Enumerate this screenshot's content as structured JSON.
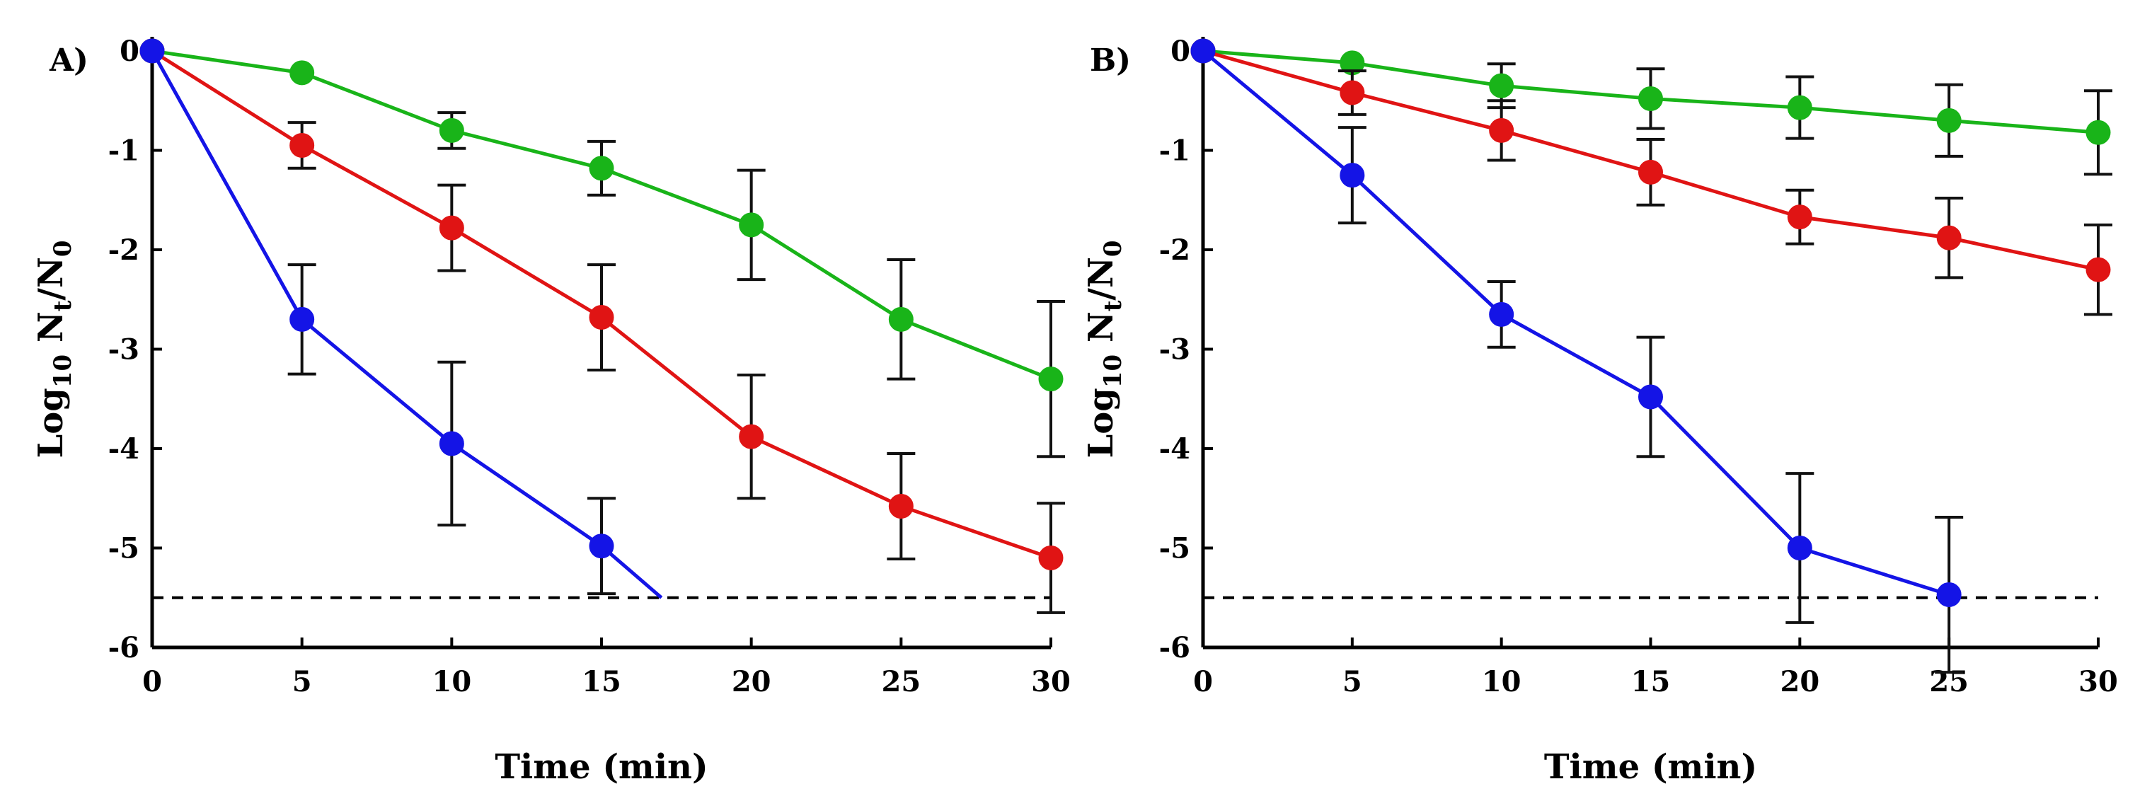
{
  "chart_data": [
    {
      "type": "line",
      "panel_label": "A)",
      "xlabel": "Time (min)",
      "ylabel": {
        "base": "Log",
        "sub1": "10",
        "mid": " N",
        "sub2": "t",
        "slash": "/N",
        "sub3": "0"
      },
      "xlim": [
        0,
        30
      ],
      "ylim": [
        -6,
        0
      ],
      "xticks": [
        "0",
        "5",
        "10",
        "15",
        "20",
        "25",
        "30"
      ],
      "yticks": [
        "0",
        "-1",
        "-2",
        "-3",
        "-4",
        "-5",
        "-6"
      ],
      "detection_limit": -5.5,
      "legend": "none",
      "series": [
        {
          "name": "green",
          "color": "#19b419",
          "points": [
            {
              "x": 0,
              "y": 0,
              "err": 0
            },
            {
              "x": 5,
              "y": -0.22,
              "err": 0
            },
            {
              "x": 10,
              "y": -0.8,
              "err": 0.18
            },
            {
              "x": 15,
              "y": -1.18,
              "err": 0.27
            },
            {
              "x": 20,
              "y": -1.75,
              "err": 0.55
            },
            {
              "x": 25,
              "y": -2.7,
              "err": 0.6
            },
            {
              "x": 30,
              "y": -3.3,
              "err": 0.78
            }
          ]
        },
        {
          "name": "red",
          "color": "#e01414",
          "points": [
            {
              "x": 0,
              "y": 0,
              "err": 0
            },
            {
              "x": 5,
              "y": -0.95,
              "err": 0.23
            },
            {
              "x": 10,
              "y": -1.78,
              "err": 0.43
            },
            {
              "x": 15,
              "y": -2.68,
              "err": 0.53
            },
            {
              "x": 20,
              "y": -3.88,
              "err": 0.62
            },
            {
              "x": 25,
              "y": -4.58,
              "err": 0.53
            },
            {
              "x": 30,
              "y": -5.1,
              "err": 0.55
            }
          ]
        },
        {
          "name": "blue",
          "color": "#1414e6",
          "line_end": {
            "x": 17,
            "y": -5.5
          },
          "points": [
            {
              "x": 0,
              "y": 0,
              "err": 0
            },
            {
              "x": 5,
              "y": -2.7,
              "err": 0.55
            },
            {
              "x": 10,
              "y": -3.95,
              "err": 0.82
            },
            {
              "x": 15,
              "y": -4.98,
              "err": 0.48
            }
          ]
        }
      ]
    },
    {
      "type": "line",
      "panel_label": "B)",
      "xlabel": "Time (min)",
      "ylabel": {
        "base": "Log",
        "sub1": "10",
        "mid": " N",
        "sub2": "t",
        "slash": "/N",
        "sub3": "0"
      },
      "xlim": [
        0,
        30
      ],
      "ylim": [
        -6,
        0
      ],
      "xticks": [
        "0",
        "5",
        "10",
        "15",
        "20",
        "25",
        "30"
      ],
      "yticks": [
        "0",
        "-1",
        "-2",
        "-3",
        "-4",
        "-5",
        "-6"
      ],
      "detection_limit": -5.5,
      "legend": "none",
      "series": [
        {
          "name": "green",
          "color": "#19b419",
          "points": [
            {
              "x": 0,
              "y": 0,
              "err": 0
            },
            {
              "x": 5,
              "y": -0.12,
              "err": 0
            },
            {
              "x": 10,
              "y": -0.35,
              "err": 0.22
            },
            {
              "x": 15,
              "y": -0.48,
              "err": 0.3
            },
            {
              "x": 20,
              "y": -0.57,
              "err": 0.31
            },
            {
              "x": 25,
              "y": -0.7,
              "err": 0.36
            },
            {
              "x": 30,
              "y": -0.82,
              "err": 0.42
            }
          ]
        },
        {
          "name": "red",
          "color": "#e01414",
          "points": [
            {
              "x": 0,
              "y": 0,
              "err": 0
            },
            {
              "x": 5,
              "y": -0.42,
              "err": 0.22
            },
            {
              "x": 10,
              "y": -0.8,
              "err": 0.3
            },
            {
              "x": 15,
              "y": -1.22,
              "err": 0.33
            },
            {
              "x": 20,
              "y": -1.67,
              "err": 0.27
            },
            {
              "x": 25,
              "y": -1.88,
              "err": 0.4
            },
            {
              "x": 30,
              "y": -2.2,
              "err": 0.45
            }
          ]
        },
        {
          "name": "blue",
          "color": "#1414e6",
          "points": [
            {
              "x": 0,
              "y": 0,
              "err": 0
            },
            {
              "x": 5,
              "y": -1.25,
              "err": 0.48
            },
            {
              "x": 10,
              "y": -2.65,
              "err": 0.33
            },
            {
              "x": 15,
              "y": -3.48,
              "err": 0.6
            },
            {
              "x": 20,
              "y": -5.0,
              "err": 0.75
            },
            {
              "x": 25,
              "y": -5.47,
              "err": 0.78
            }
          ]
        }
      ]
    }
  ]
}
